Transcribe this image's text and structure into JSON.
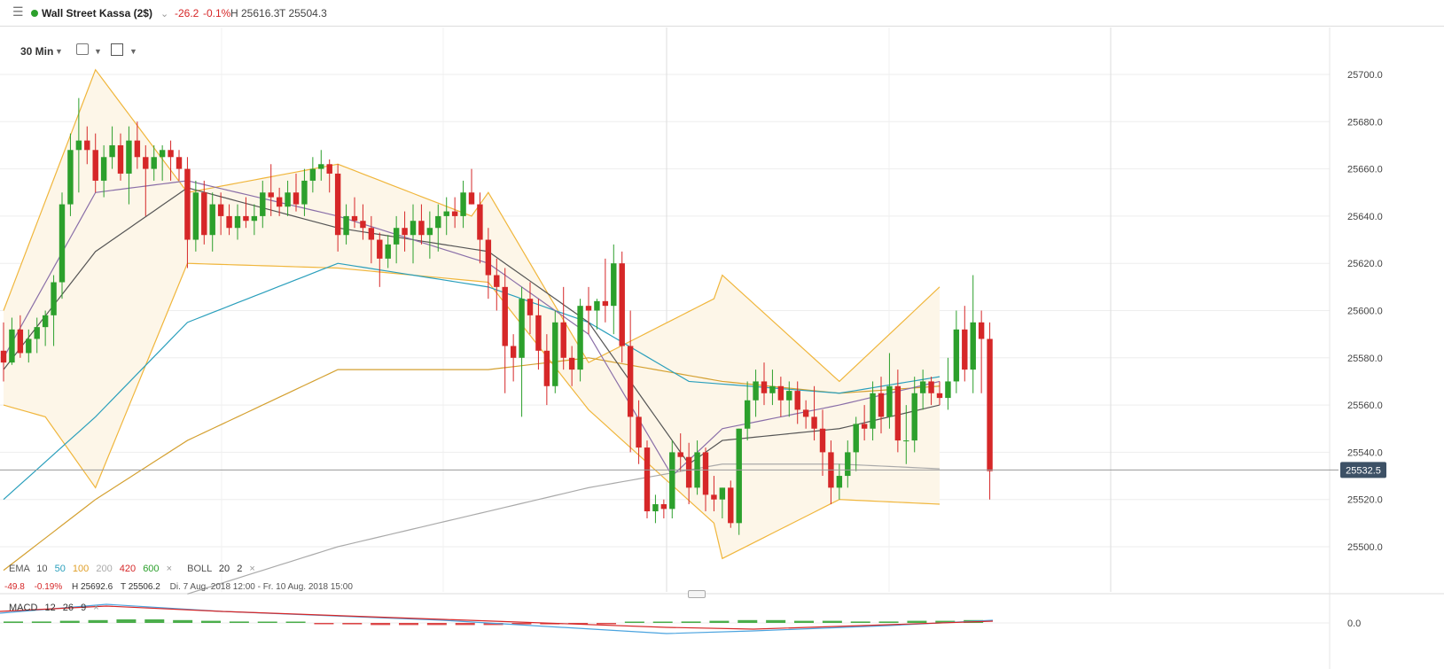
{
  "header": {
    "instrument": "Wall Street Kassa (2$)",
    "change": "-26.2",
    "change_pct": "-0.1%",
    "high": "H 25616.3",
    "low": "T 25504.3"
  },
  "toolbar": {
    "timeframe": "30 Min"
  },
  "legend": {
    "ema_label": "EMA",
    "ema_periods": [
      {
        "label": "10",
        "color": "#555555"
      },
      {
        "label": "50",
        "color": "#2a9fbc"
      },
      {
        "label": "100",
        "color": "#e0a02a"
      },
      {
        "label": "200",
        "color": "#aaaaaa"
      },
      {
        "label": "420",
        "color": "#d62728"
      },
      {
        "label": "600",
        "color": "#2ca02c"
      }
    ],
    "boll_label": "BOLL",
    "boll_params": "20",
    "boll_dev": "2",
    "summary_change": "-49.8",
    "summary_pct": "-0.19%",
    "summary_high": "H 25692.6",
    "summary_low": "T 25506.2",
    "range": "Di. 7 Aug. 2018 12:00 - Fr. 10 Aug. 2018 15:00"
  },
  "macd": {
    "label": "MACD",
    "p1": "12",
    "p2": "26",
    "p3": "9",
    "zero_label": "0.0"
  },
  "chart_data": {
    "type": "candlestick",
    "ylim": [
      25480,
      25710
    ],
    "y_ticks": [
      25500,
      25520,
      25540,
      25560,
      25580,
      25600,
      25620,
      25640,
      25660,
      25680,
      25700
    ],
    "tick_labels": [
      "25500.0",
      "25520.0",
      "25540.0",
      "25560.0",
      "25580.0",
      "25600.0",
      "25620.0",
      "25640.0",
      "25660.0",
      "25680.0",
      "25700.0"
    ],
    "last_price": 25532.5,
    "last_price_label": "25532.5",
    "colors": {
      "up": "#2ca02c",
      "down": "#d62728",
      "boll": "#f0b63c",
      "boll_fill": "#fdf6e8",
      "ema10": "#555555",
      "ema50": "#2a9fbc",
      "ema100": "#d4a030",
      "ema200": "#aaaaaa",
      "sma_purple": "#8a6fa8"
    },
    "candles": [
      [
        25583,
        25595,
        25570,
        25578
      ],
      [
        25578,
        25597,
        25577,
        25592
      ],
      [
        25592,
        25598,
        25580,
        25582
      ],
      [
        25582,
        25592,
        25578,
        25588
      ],
      [
        25588,
        25597,
        25582,
        25593
      ],
      [
        25593,
        25600,
        25585,
        25598
      ],
      [
        25598,
        25615,
        25585,
        25612
      ],
      [
        25612,
        25650,
        25605,
        25645
      ],
      [
        25645,
        25675,
        25640,
        25668
      ],
      [
        25668,
        25690,
        25650,
        25672
      ],
      [
        25672,
        25678,
        25662,
        25668
      ],
      [
        25668,
        25675,
        25650,
        25655
      ],
      [
        25655,
        25670,
        25648,
        25665
      ],
      [
        25665,
        25678,
        25660,
        25670
      ],
      [
        25670,
        25675,
        25655,
        25658
      ],
      [
        25658,
        25678,
        25645,
        25672
      ],
      [
        25672,
        25680,
        25660,
        25665
      ],
      [
        25665,
        25670,
        25640,
        25660
      ],
      [
        25660,
        25670,
        25655,
        25665
      ],
      [
        25665,
        25670,
        25655,
        25668
      ],
      [
        25668,
        25672,
        25655,
        25665
      ],
      [
        25665,
        25668,
        25655,
        25660
      ],
      [
        25660,
        25665,
        25618,
        25630
      ],
      [
        25630,
        25655,
        25625,
        25650
      ],
      [
        25650,
        25655,
        25628,
        25632
      ],
      [
        25632,
        25650,
        25625,
        25645
      ],
      [
        25645,
        25650,
        25632,
        25640
      ],
      [
        25640,
        25645,
        25632,
        25635
      ],
      [
        25635,
        25645,
        25630,
        25640
      ],
      [
        25640,
        25648,
        25635,
        25638
      ],
      [
        25638,
        25645,
        25632,
        25640
      ],
      [
        25640,
        25655,
        25635,
        25650
      ],
      [
        25650,
        25662,
        25640,
        25648
      ],
      [
        25648,
        25652,
        25640,
        25644
      ],
      [
        25644,
        25655,
        25640,
        25650
      ],
      [
        25650,
        25658,
        25642,
        25645
      ],
      [
        25645,
        25660,
        25640,
        25655
      ],
      [
        25655,
        25665,
        25650,
        25660
      ],
      [
        25660,
        25668,
        25655,
        25662
      ],
      [
        25662,
        25664,
        25650,
        25658
      ],
      [
        25658,
        25662,
        25625,
        25632
      ],
      [
        25632,
        25645,
        25628,
        25640
      ],
      [
        25640,
        25648,
        25635,
        25638
      ],
      [
        25638,
        25645,
        25630,
        25635
      ],
      [
        25635,
        25640,
        25620,
        25630
      ],
      [
        25630,
        25633,
        25610,
        25622
      ],
      [
        25622,
        25632,
        25618,
        25628
      ],
      [
        25628,
        25640,
        25620,
        25635
      ],
      [
        25635,
        25642,
        25625,
        25632
      ],
      [
        25632,
        25645,
        25620,
        25638
      ],
      [
        25638,
        25645,
        25628,
        25632
      ],
      [
        25632,
        25642,
        25622,
        25635
      ],
      [
        25635,
        25645,
        25625,
        25640
      ],
      [
        25640,
        25648,
        25632,
        25642
      ],
      [
        25642,
        25648,
        25635,
        25640
      ],
      [
        25640,
        25655,
        25635,
        25650
      ],
      [
        25650,
        25660,
        25645,
        25645
      ],
      [
        25645,
        25650,
        25620,
        25630
      ],
      [
        25630,
        25635,
        25605,
        25615
      ],
      [
        25615,
        25622,
        25600,
        25610
      ],
      [
        25610,
        25618,
        25565,
        25585
      ],
      [
        25585,
        25590,
        25570,
        25580
      ],
      [
        25580,
        25610,
        25555,
        25605
      ],
      [
        25605,
        25612,
        25590,
        25598
      ],
      [
        25598,
        25605,
        25575,
        25583
      ],
      [
        25583,
        25590,
        25560,
        25568
      ],
      [
        25568,
        25600,
        25565,
        25595
      ],
      [
        25595,
        25610,
        25575,
        25580
      ],
      [
        25580,
        25585,
        25568,
        25575
      ],
      [
        25575,
        25605,
        25570,
        25602
      ],
      [
        25602,
        25610,
        25590,
        25600
      ],
      [
        25600,
        25605,
        25592,
        25604
      ],
      [
        25604,
        25622,
        25595,
        25602
      ],
      [
        25602,
        25628,
        25590,
        25620
      ],
      [
        25620,
        25625,
        25578,
        25585
      ],
      [
        25585,
        25600,
        25540,
        25555
      ],
      [
        25555,
        25562,
        25535,
        25542
      ],
      [
        25542,
        25545,
        25512,
        25515
      ],
      [
        25515,
        25522,
        25510,
        25518
      ],
      [
        25518,
        25520,
        25512,
        25516
      ],
      [
        25516,
        25545,
        25512,
        25540
      ],
      [
        25540,
        25548,
        25532,
        25538
      ],
      [
        25538,
        25544,
        25518,
        25525
      ],
      [
        25525,
        25545,
        25522,
        25540
      ],
      [
        25540,
        25542,
        25515,
        25522
      ],
      [
        25522,
        25530,
        25515,
        25520
      ],
      [
        25520,
        25525,
        25512,
        25525
      ],
      [
        25525,
        25528,
        25508,
        25510
      ],
      [
        25510,
        25550,
        25505,
        25550
      ],
      [
        25550,
        25570,
        25545,
        25562
      ],
      [
        25562,
        25575,
        25555,
        25570
      ],
      [
        25570,
        25578,
        25560,
        25565
      ],
      [
        25565,
        25575,
        25560,
        25568
      ],
      [
        25568,
        25572,
        25555,
        25562
      ],
      [
        25562,
        25570,
        25555,
        25566
      ],
      [
        25566,
        25570,
        25552,
        25558
      ],
      [
        25558,
        25562,
        25550,
        25555
      ],
      [
        25555,
        25568,
        25545,
        25550
      ],
      [
        25550,
        25558,
        25530,
        25540
      ],
      [
        25540,
        25545,
        25518,
        25525
      ],
      [
        25525,
        25535,
        25520,
        25530
      ],
      [
        25530,
        25545,
        25525,
        25540
      ],
      [
        25540,
        25555,
        25532,
        25552
      ],
      [
        25552,
        25560,
        25545,
        25550
      ],
      [
        25550,
        25570,
        25545,
        25565
      ],
      [
        25565,
        25572,
        25548,
        25555
      ],
      [
        25555,
        25582,
        25550,
        25568
      ],
      [
        25568,
        25575,
        25540,
        25545
      ],
      [
        25545,
        25560,
        25535,
        25545
      ],
      [
        25545,
        25572,
        25540,
        25565
      ],
      [
        25565,
        25575,
        25558,
        25570
      ],
      [
        25570,
        25572,
        25560,
        25565
      ],
      [
        25565,
        25570,
        25560,
        25563
      ],
      [
        25563,
        25580,
        25558,
        25570
      ],
      [
        25570,
        25600,
        25565,
        25592
      ],
      [
        25592,
        25602,
        25570,
        25575
      ],
      [
        25575,
        25615,
        25565,
        25595
      ],
      [
        25595,
        25600,
        25565,
        25588
      ],
      [
        25588,
        25595,
        25520,
        25532
      ]
    ],
    "lines": {
      "boll_upper": [
        [
          0,
          25600
        ],
        [
          11,
          25702
        ],
        [
          22,
          25650
        ],
        [
          40,
          25662
        ],
        [
          56,
          25640
        ],
        [
          58,
          25650
        ],
        [
          70,
          25578
        ],
        [
          85,
          25605
        ],
        [
          86,
          25615
        ],
        [
          100,
          25570
        ],
        [
          112,
          25610
        ]
      ],
      "boll_lower": [
        [
          0,
          25560
        ],
        [
          5,
          25555
        ],
        [
          11,
          25525
        ],
        [
          22,
          25620
        ],
        [
          40,
          25618
        ],
        [
          58,
          25612
        ],
        [
          70,
          25558
        ],
        [
          85,
          25510
        ],
        [
          86,
          25495
        ],
        [
          100,
          25520
        ],
        [
          112,
          25518
        ]
      ],
      "ema10": [
        [
          0,
          25575
        ],
        [
          11,
          25625
        ],
        [
          22,
          25652
        ],
        [
          40,
          25635
        ],
        [
          58,
          25625
        ],
        [
          70,
          25595
        ],
        [
          82,
          25535
        ],
        [
          86,
          25545
        ],
        [
          100,
          25550
        ],
        [
          112,
          25560
        ]
      ],
      "sma_purple": [
        [
          0,
          25580
        ],
        [
          11,
          25650
        ],
        [
          22,
          25655
        ],
        [
          40,
          25640
        ],
        [
          58,
          25620
        ],
        [
          70,
          25590
        ],
        [
          80,
          25530
        ],
        [
          86,
          25550
        ],
        [
          100,
          25560
        ],
        [
          112,
          25570
        ]
      ],
      "ema50": [
        [
          0,
          25520
        ],
        [
          11,
          25555
        ],
        [
          22,
          25595
        ],
        [
          40,
          25620
        ],
        [
          58,
          25610
        ],
        [
          70,
          25595
        ],
        [
          82,
          25570
        ],
        [
          100,
          25565
        ],
        [
          112,
          25572
        ]
      ],
      "ema100": [
        [
          0,
          25490
        ],
        [
          11,
          25520
        ],
        [
          22,
          25545
        ],
        [
          40,
          25575
        ],
        [
          58,
          25575
        ],
        [
          70,
          25580
        ],
        [
          86,
          25570
        ],
        [
          100,
          25565
        ],
        [
          112,
          25568
        ]
      ],
      "ema200": [
        [
          22,
          25480
        ],
        [
          40,
          25500
        ],
        [
          58,
          25515
        ],
        [
          70,
          25525
        ],
        [
          86,
          25535
        ],
        [
          100,
          25535
        ],
        [
          112,
          25533
        ]
      ]
    },
    "macd_hist": [
      0.2,
      0.2,
      0.3,
      0.4,
      0.5,
      0.5,
      0.4,
      0.3,
      0.2,
      0.1,
      0.0,
      -0.1,
      -0.2,
      -0.3,
      -0.3,
      -0.3,
      -0.3,
      -0.3,
      -0.2,
      -0.2,
      -0.1,
      -0.1,
      0.0,
      0.1,
      0.2,
      0.3,
      0.4,
      0.4,
      0.3,
      0.3,
      0.2,
      0.2,
      0.3,
      0.3,
      0.4
    ]
  }
}
